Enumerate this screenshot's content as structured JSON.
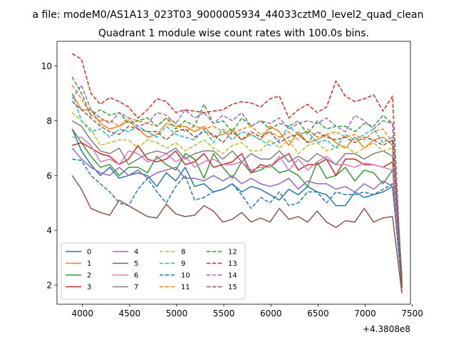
{
  "figure": {
    "suptitle": "a file: modeM0/AS1A13_023T03_9000005934_44033cztM0_level2_quad_clean",
    "title": "Quadrant 1 module wise count rates with 100.0s bins."
  },
  "chart_data": {
    "type": "line",
    "title": "Quadrant 1 module wise count rates with 100.0s bins.",
    "xlabel": "",
    "ylabel": "",
    "x_offset_label": "+4.3808e8",
    "xlim": [
      3730,
      7480
    ],
    "ylim": [
      1.3,
      10.9
    ],
    "xticks": [
      4000,
      4500,
      5000,
      5500,
      6000,
      6500,
      7000,
      7500
    ],
    "yticks": [
      2,
      4,
      6,
      8,
      10
    ],
    "grid": false,
    "legend": {
      "position": "lower-left",
      "columns": 4
    },
    "x": [
      3890,
      3990,
      4090,
      4190,
      4290,
      4390,
      4490,
      4590,
      4690,
      4790,
      4890,
      4990,
      5090,
      5190,
      5290,
      5390,
      5490,
      5590,
      5690,
      5790,
      5890,
      5990,
      6090,
      6190,
      6290,
      6390,
      6490,
      6590,
      6690,
      6790,
      6890,
      6990,
      7090,
      7190,
      7290,
      7390
    ],
    "series": [
      {
        "name": "0",
        "color": "#1f77b4",
        "dash": "solid",
        "values": [
          7.7,
          6.9,
          6.4,
          6.0,
          6.3,
          5.9,
          6.0,
          6.1,
          6.0,
          5.6,
          6.1,
          5.8,
          6.3,
          5.6,
          5.7,
          5.4,
          5.5,
          5.7,
          5.4,
          5.6,
          5.5,
          5.3,
          5.1,
          5.5,
          5.3,
          5.6,
          5.4,
          5.3,
          4.9,
          4.9,
          5.4,
          5.2,
          5.3,
          5.4,
          5.6,
          2.0
        ]
      },
      {
        "name": "1",
        "color": "#ff7f0e",
        "dash": "solid",
        "values": [
          9.0,
          8.4,
          8.4,
          7.9,
          7.7,
          7.8,
          8.0,
          7.7,
          7.4,
          7.5,
          7.9,
          7.8,
          7.8,
          7.6,
          7.8,
          7.4,
          7.5,
          7.7,
          7.3,
          7.5,
          7.3,
          7.8,
          7.6,
          7.1,
          7.6,
          7.2,
          7.3,
          7.5,
          7.2,
          7.0,
          7.4,
          7.0,
          7.3,
          7.4,
          7.1,
          2.1
        ]
      },
      {
        "name": "2",
        "color": "#2ca02c",
        "dash": "solid",
        "values": [
          7.7,
          7.2,
          6.7,
          6.3,
          6.4,
          6.0,
          6.3,
          6.3,
          6.1,
          6.7,
          6.4,
          6.2,
          6.8,
          6.6,
          5.9,
          6.8,
          6.3,
          5.9,
          6.5,
          6.1,
          6.2,
          6.4,
          6.1,
          6.2,
          6.0,
          5.6,
          6.5,
          5.9,
          6.0,
          6.3,
          5.8,
          6.2,
          6.1,
          5.7,
          6.2,
          1.9
        ]
      },
      {
        "name": "3",
        "color": "#d62728",
        "dash": "solid",
        "values": [
          7.1,
          7.2,
          7.0,
          6.8,
          6.7,
          6.4,
          6.6,
          7.1,
          6.6,
          6.5,
          6.6,
          6.9,
          6.4,
          6.5,
          6.8,
          6.3,
          6.4,
          6.5,
          6.8,
          6.1,
          6.4,
          6.3,
          6.6,
          6.8,
          6.2,
          6.4,
          6.4,
          6.6,
          6.0,
          6.6,
          6.6,
          6.4,
          6.4,
          6.3,
          6.5,
          2.3
        ]
      },
      {
        "name": "4",
        "color": "#9467bd",
        "dash": "solid",
        "values": [
          7.0,
          6.6,
          6.3,
          6.1,
          6.0,
          6.3,
          6.0,
          6.2,
          5.9,
          6.1,
          6.2,
          6.3,
          5.9,
          5.9,
          5.8,
          6.0,
          5.8,
          6.0,
          5.7,
          5.9,
          5.7,
          5.6,
          5.7,
          5.9,
          5.5,
          5.8,
          5.7,
          5.7,
          5.5,
          5.6,
          5.4,
          5.7,
          5.5,
          5.8,
          5.6,
          2.1
        ]
      },
      {
        "name": "5",
        "color": "#8c564b",
        "dash": "solid",
        "values": [
          6.0,
          5.5,
          4.8,
          4.65,
          4.55,
          5.1,
          4.9,
          4.7,
          4.5,
          4.45,
          4.95,
          4.6,
          4.5,
          4.55,
          4.9,
          4.7,
          4.3,
          4.4,
          4.65,
          4.3,
          4.45,
          4.3,
          4.8,
          4.4,
          4.5,
          4.3,
          4.7,
          4.3,
          4.1,
          4.35,
          4.3,
          4.8,
          4.3,
          4.45,
          4.5,
          1.7
        ]
      },
      {
        "name": "6",
        "color": "#e377c2",
        "dash": "solid",
        "values": [
          7.4,
          7.4,
          7.1,
          6.5,
          6.6,
          6.4,
          6.9,
          6.8,
          6.5,
          6.6,
          6.8,
          6.5,
          6.7,
          6.3,
          6.5,
          6.6,
          6.4,
          6.4,
          6.5,
          6.2,
          6.3,
          6.3,
          6.7,
          6.2,
          6.6,
          6.2,
          6.5,
          6.7,
          6.4,
          6.4,
          6.3,
          6.45,
          6.4,
          6.3,
          6.2,
          2.1
        ]
      },
      {
        "name": "7",
        "color": "#7f7f7f",
        "dash": "solid",
        "values": [
          8.0,
          7.8,
          7.3,
          6.9,
          6.8,
          7.0,
          6.4,
          6.6,
          6.8,
          6.9,
          6.8,
          7.0,
          6.6,
          6.8,
          6.9,
          6.9,
          6.6,
          6.9,
          6.5,
          6.8,
          6.6,
          6.6,
          6.9,
          6.5,
          6.7,
          6.5,
          6.8,
          6.6,
          6.4,
          6.8,
          6.8,
          6.6,
          6.8,
          6.9,
          6.7,
          2.2
        ]
      },
      {
        "name": "8",
        "color": "#bcbd22",
        "dash": "dashed",
        "values": [
          8.3,
          8.0,
          7.7,
          7.1,
          7.2,
          7.3,
          7.3,
          7.0,
          7.3,
          7.2,
          7.0,
          7.2,
          6.9,
          7.1,
          7.3,
          7.0,
          6.8,
          7.1,
          7.2,
          6.9,
          6.9,
          7.3,
          7.0,
          7.3,
          6.8,
          7.1,
          7.2,
          6.9,
          7.0,
          7.1,
          6.8,
          7.0,
          7.2,
          6.9,
          7.0,
          2.2
        ]
      },
      {
        "name": "9",
        "color": "#17becf",
        "dash": "dashed",
        "values": [
          9.0,
          8.0,
          7.6,
          7.7,
          7.4,
          7.7,
          7.6,
          7.8,
          7.6,
          7.4,
          7.8,
          7.5,
          7.4,
          7.3,
          7.7,
          7.2,
          7.7,
          7.3,
          7.6,
          7.5,
          7.3,
          7.1,
          7.3,
          7.8,
          7.5,
          7.6,
          7.2,
          7.3,
          7.0,
          7.5,
          7.3,
          7.5,
          7.7,
          7.2,
          7.4,
          2.1
        ]
      },
      {
        "name": "10",
        "color": "#1f77b4",
        "dash": "dashed",
        "values": [
          6.6,
          6.55,
          6.0,
          5.7,
          5.4,
          5.0,
          4.9,
          5.5,
          5.9,
          5.4,
          5.0,
          5.6,
          6.0,
          5.1,
          5.2,
          5.4,
          5.5,
          5.7,
          5.3,
          4.8,
          5.2,
          5.0,
          5.4,
          4.9,
          5.0,
          5.4,
          5.4,
          5.0,
          5.4,
          5.3,
          5.3,
          5.4,
          5.3,
          5.5,
          5.7,
          1.9
        ]
      },
      {
        "name": "11",
        "color": "#ff7f0e",
        "dash": "dashed",
        "values": [
          9.3,
          8.8,
          8.2,
          8.0,
          8.0,
          7.8,
          8.1,
          8.0,
          7.9,
          7.8,
          8.1,
          7.9,
          7.6,
          7.8,
          7.7,
          7.8,
          7.6,
          7.5,
          7.7,
          7.8,
          7.5,
          7.6,
          7.4,
          7.6,
          7.3,
          7.7,
          7.4,
          7.5,
          7.6,
          7.4,
          7.5,
          7.3,
          7.6,
          7.7,
          7.2,
          2.2
        ]
      },
      {
        "name": "12",
        "color": "#2ca02c",
        "dash": "dashed",
        "values": [
          9.6,
          9.0,
          8.2,
          8.4,
          8.2,
          8.3,
          7.9,
          8.0,
          8.1,
          7.8,
          8.1,
          7.7,
          8.0,
          7.8,
          8.6,
          7.9,
          8.0,
          7.6,
          8.1,
          7.8,
          8.0,
          7.7,
          7.9,
          7.8,
          8.0,
          7.5,
          8.0,
          7.7,
          7.8,
          7.8,
          7.6,
          7.9,
          7.8,
          8.2,
          7.9,
          2.3
        ]
      },
      {
        "name": "13",
        "color": "#d62728",
        "dash": "dashed",
        "values": [
          10.45,
          10.25,
          9.0,
          8.6,
          8.85,
          8.7,
          8.5,
          8.1,
          8.4,
          8.8,
          8.7,
          8.3,
          8.4,
          8.35,
          8.3,
          8.35,
          8.4,
          8.6,
          8.7,
          8.65,
          8.5,
          8.8,
          8.9,
          8.1,
          8.4,
          8.6,
          8.3,
          8.5,
          9.45,
          8.9,
          8.7,
          8.8,
          8.95,
          8.35,
          8.9,
          1.8
        ]
      },
      {
        "name": "14",
        "color": "#9467bd",
        "dash": "dashed",
        "values": [
          8.8,
          9.3,
          8.4,
          8.1,
          7.9,
          8.3,
          8.1,
          7.8,
          7.9,
          8.3,
          8.2,
          7.9,
          8.4,
          8.1,
          8.3,
          7.9,
          8.2,
          8.0,
          8.3,
          7.8,
          8.0,
          7.9,
          8.1,
          7.7,
          7.9,
          8.0,
          7.9,
          8.1,
          7.8,
          7.6,
          8.2,
          8.0,
          7.7,
          8.0,
          7.9,
          2.0
        ]
      },
      {
        "name": "15",
        "color": "#8c564b",
        "dash": "dashed",
        "values": [
          8.7,
          8.4,
          8.1,
          7.8,
          7.6,
          7.5,
          7.8,
          7.7,
          7.6,
          7.6,
          7.3,
          7.6,
          7.7,
          7.4,
          7.6,
          7.5,
          7.2,
          7.6,
          7.3,
          7.6,
          7.4,
          7.6,
          7.2,
          7.4,
          7.5,
          7.2,
          7.6,
          7.4,
          7.3,
          7.4,
          7.2,
          7.4,
          7.3,
          7.1,
          7.3,
          1.9
        ]
      }
    ]
  }
}
